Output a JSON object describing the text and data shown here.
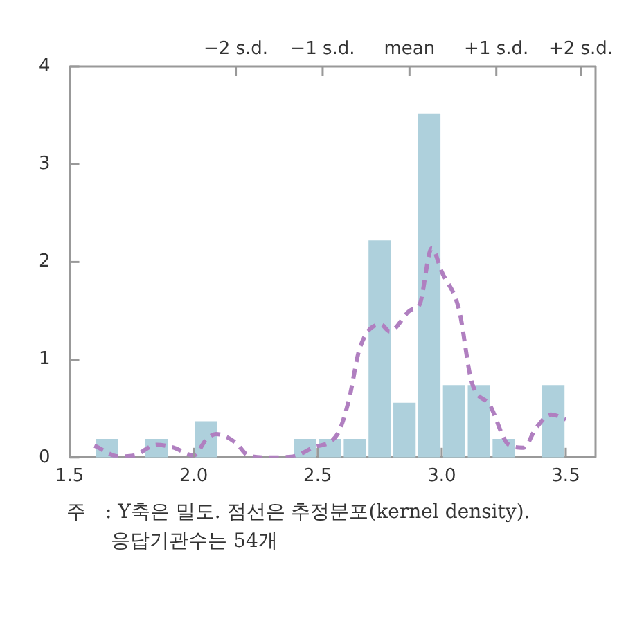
{
  "chart_data": {
    "type": "histogram",
    "bins": [
      1.6,
      1.7,
      1.8,
      1.9,
      2.0,
      2.1,
      2.2,
      2.3,
      2.4,
      2.5,
      2.6,
      2.7,
      2.8,
      2.9,
      3.0,
      3.1,
      3.2,
      3.3,
      3.4,
      3.5
    ],
    "values": [
      0.19,
      0,
      0.19,
      0,
      0.37,
      0,
      0,
      0,
      0.19,
      0.19,
      0.19,
      2.22,
      0.56,
      3.52,
      0.74,
      0.74,
      0.19,
      0,
      0.74
    ],
    "color": "#aed0dc",
    "series": [
      {
        "type": "line",
        "color": "#b07fc0",
        "line_style": "dashed",
        "marker": "none",
        "x": [
          1.6,
          1.7,
          1.76,
          1.85,
          1.92,
          2.0,
          2.05,
          2.09,
          2.17,
          2.22,
          2.3,
          2.4,
          2.48,
          2.58,
          2.625,
          2.67,
          2.755,
          2.79,
          2.876,
          2.91,
          2.96,
          3.0,
          3.07,
          3.12,
          3.195,
          3.27,
          3.33,
          3.38,
          3.44,
          3.5
        ],
        "values": [
          0.12,
          0.01,
          0.02,
          0.13,
          0.1,
          0.02,
          0.18,
          0.24,
          0.15,
          0.02,
          0.0,
          0.01,
          0.1,
          0.24,
          0.58,
          1.12,
          1.36,
          1.29,
          1.51,
          1.56,
          2.14,
          1.9,
          1.51,
          0.78,
          0.53,
          0.13,
          0.1,
          0.3,
          0.44,
          0.39
        ]
      }
    ],
    "xlim": [
      1.5,
      3.62
    ],
    "xticks": [
      1.5,
      {
        "value": 2,
        "label": "2.0"
      },
      2.5,
      {
        "value": 3,
        "label": "3.0"
      },
      3.5
    ],
    "ylim": [
      0,
      4
    ],
    "yticks": [
      0,
      1,
      2,
      3,
      4
    ],
    "grid": false,
    "ref_lines": [
      {
        "axis": "x",
        "value": 2.17,
        "label": "−2 s.d."
      },
      {
        "axis": "x",
        "value": 2.52,
        "label": "−1 s.d."
      },
      {
        "axis": "x",
        "value": 2.87,
        "label": "mean"
      },
      {
        "axis": "x",
        "value": 3.22,
        "label": "+1 s.d."
      },
      {
        "axis": "x",
        "value": 3.56,
        "label": "+2 s.d."
      }
    ],
    "annotations": [
      "주　: Y축은 밀도. 점선은 추정분포(kernel density).\n응답기관수는 54개"
    ]
  }
}
